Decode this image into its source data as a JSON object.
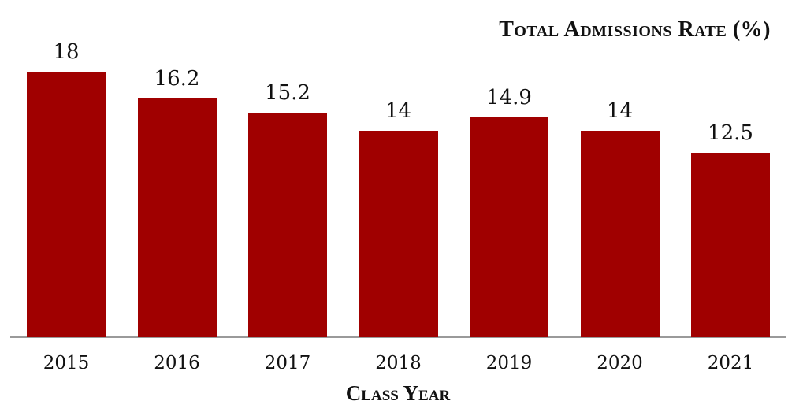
{
  "chart_data": {
    "type": "bar",
    "title": "Total Admissions Rate (%)",
    "xlabel": "Class Year",
    "ylabel": "",
    "categories": [
      "2015",
      "2016",
      "2017",
      "2018",
      "2019",
      "2020",
      "2021"
    ],
    "values": [
      18,
      16.2,
      15.2,
      14,
      14.9,
      14,
      12.5
    ],
    "value_labels": [
      "18",
      "16.2",
      "15.2",
      "14",
      "14.9",
      "14",
      "12.5"
    ],
    "ylim": [
      0,
      18
    ],
    "grid": false,
    "legend": "none",
    "bar_color": "#a00000"
  }
}
